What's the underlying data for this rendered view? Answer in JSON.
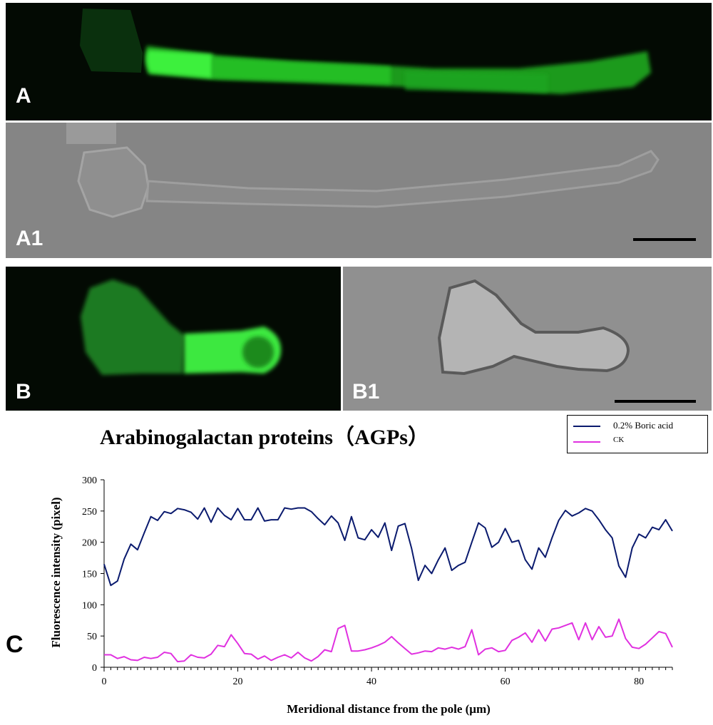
{
  "panels": {
    "a": "A",
    "a1": "A1",
    "b": "B",
    "b1": "B1",
    "c": "C"
  },
  "colors": {
    "fluorescence": "#33dd33",
    "boric_acid_series": "#0a1a6e",
    "ck_series": "#e030e0"
  },
  "chart_data": {
    "type": "line",
    "title": "Arabinogalactan proteins（AGPs）",
    "xlabel": "Meridional distance from the pole (μm)",
    "ylabel": "Fluorescence intensity (pixel)",
    "xlim": [
      0,
      85
    ],
    "ylim": [
      0,
      300
    ],
    "xticks": [
      0,
      20,
      40,
      60,
      80
    ],
    "yticks": [
      0,
      50,
      100,
      150,
      200,
      250,
      300
    ],
    "legend_position": "top-right",
    "x": [
      0,
      1,
      2,
      3,
      4,
      5,
      6,
      7,
      8,
      9,
      10,
      11,
      12,
      13,
      14,
      15,
      16,
      17,
      18,
      19,
      20,
      21,
      22,
      23,
      24,
      25,
      26,
      27,
      28,
      29,
      30,
      31,
      32,
      33,
      34,
      35,
      36,
      37,
      38,
      39,
      40,
      41,
      42,
      43,
      44,
      45,
      46,
      47,
      48,
      49,
      50,
      51,
      52,
      53,
      54,
      55,
      56,
      57,
      58,
      59,
      60,
      61,
      62,
      63,
      64,
      65,
      66,
      67,
      68,
      69,
      70,
      71,
      72,
      73,
      74,
      75,
      76,
      77,
      78,
      79,
      80,
      81,
      82,
      83,
      84,
      85
    ],
    "series": [
      {
        "name": "0.2% Boric acid",
        "values": [
          165,
          131,
          138,
          173,
          197,
          188,
          215,
          241,
          235,
          249,
          246,
          254,
          252,
          248,
          237,
          255,
          232,
          255,
          243,
          236,
          254,
          236,
          236,
          255,
          234,
          236,
          236,
          255,
          253,
          255,
          255,
          249,
          238,
          228,
          242,
          231,
          203,
          241,
          207,
          204,
          220,
          208,
          231,
          187,
          226,
          230,
          190,
          139,
          163,
          150,
          172,
          191,
          155,
          163,
          168,
          200,
          231,
          223,
          192,
          200,
          222,
          200,
          203,
          172,
          157,
          191,
          176,
          207,
          235,
          251,
          242,
          247,
          254,
          250,
          236,
          220,
          207,
          162,
          144,
          191,
          213,
          207,
          224,
          220,
          236,
          218
        ]
      },
      {
        "name": "CK",
        "values": [
          20,
          20,
          14,
          17,
          12,
          11,
          16,
          14,
          16,
          24,
          22,
          9,
          10,
          20,
          16,
          15,
          21,
          35,
          33,
          52,
          38,
          22,
          21,
          13,
          18,
          11,
          16,
          20,
          15,
          24,
          15,
          10,
          17,
          28,
          25,
          62,
          67,
          26,
          26,
          28,
          31,
          35,
          40,
          49,
          39,
          30,
          21,
          23,
          26,
          25,
          31,
          29,
          32,
          29,
          33,
          60,
          20,
          29,
          31,
          25,
          27,
          43,
          48,
          55,
          40,
          60,
          42,
          61,
          63,
          67,
          71,
          44,
          71,
          44,
          65,
          48,
          50,
          77,
          46,
          32,
          30,
          37,
          47,
          57,
          54,
          32
        ]
      }
    ]
  }
}
